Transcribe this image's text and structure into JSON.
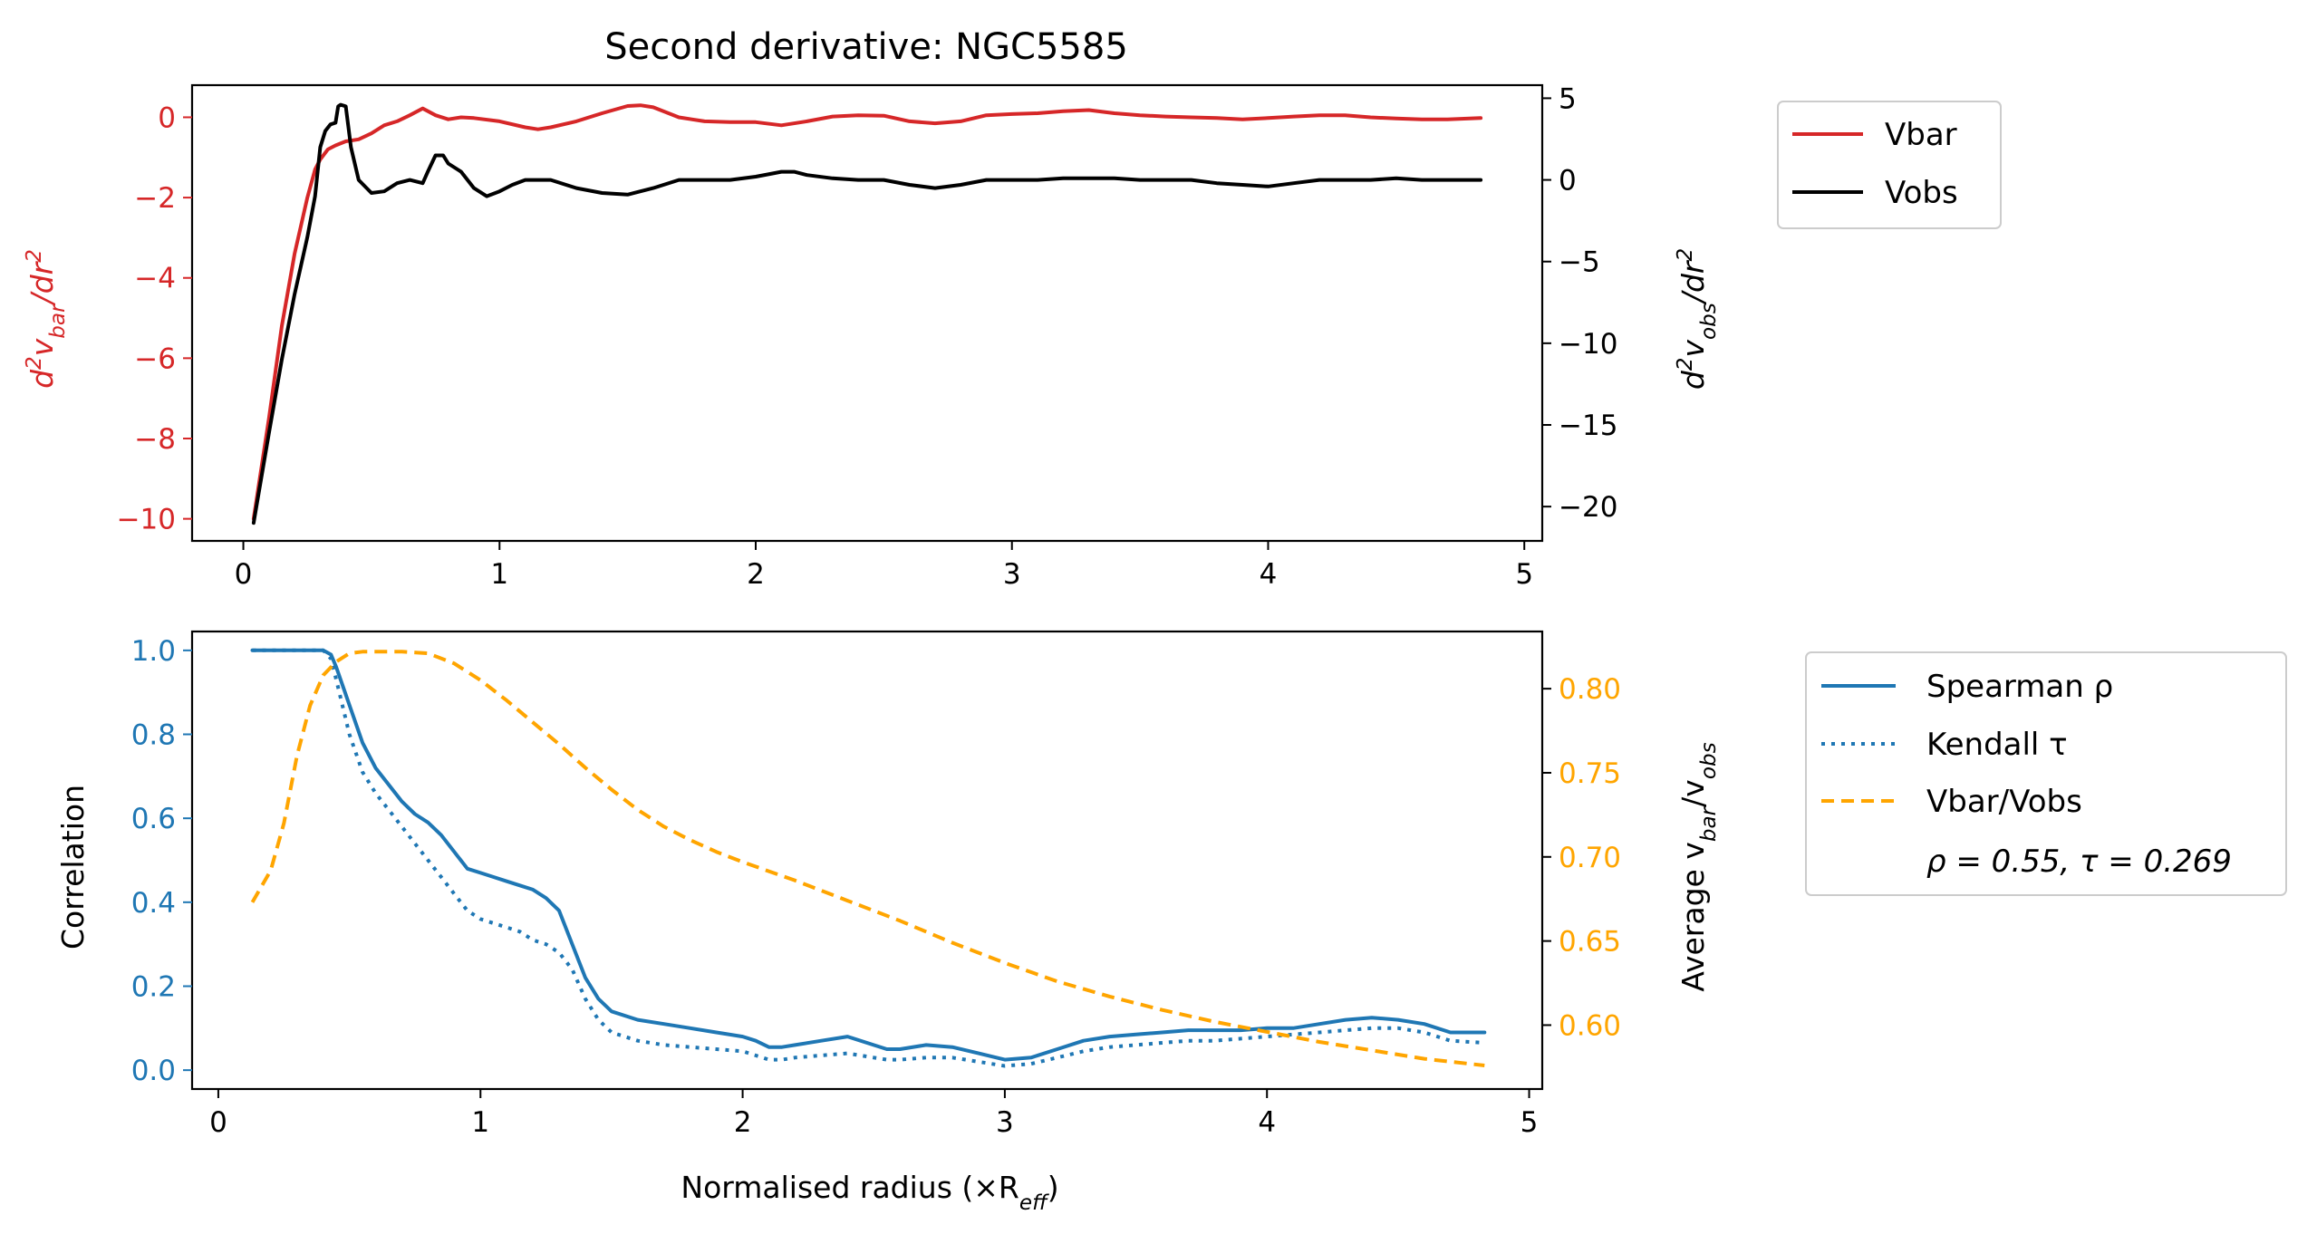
{
  "chart_data": [
    {
      "type": "line",
      "title": "Second derivative: NGC5585",
      "xlim": [
        -0.2,
        5.07
      ],
      "xticks": [
        0,
        1,
        2,
        3,
        4,
        5
      ],
      "ylabel_left_html": "d<tspan baseline-shift=\"super\" font-size=\"70%\">2</tspan>v<tspan baseline-shift=\"sub\" font-size=\"70%\">bar</tspan>/dr<tspan baseline-shift=\"super\" font-size=\"70%\">2</tspan>",
      "ylabel_right_html": "d<tspan baseline-shift=\"super\" font-size=\"70%\">2</tspan>v<tspan baseline-shift=\"sub\" font-size=\"70%\">obs</tspan>/dr<tspan baseline-shift=\"super\" font-size=\"70%\">2</tspan>",
      "ylim_left": [
        -10.55,
        0.8
      ],
      "yticks_left": [
        0,
        -2,
        -4,
        -6,
        -8,
        -10
      ],
      "ylim_right": [
        -22.1,
        5.8
      ],
      "yticks_right": [
        5,
        0,
        -5,
        -10,
        -15,
        -20
      ],
      "colors": {
        "left_axis": "#d62728",
        "right_axis": "#000000"
      },
      "legend": {
        "placement": "outside-right-top",
        "entries": [
          "Vbar",
          "Vobs"
        ]
      },
      "series": [
        {
          "name": "Vbar",
          "axis": "left",
          "color": "#d62728",
          "style": "solid",
          "x": [
            0.04,
            0.1,
            0.15,
            0.2,
            0.25,
            0.28,
            0.3,
            0.33,
            0.36,
            0.4,
            0.45,
            0.5,
            0.55,
            0.6,
            0.65,
            0.7,
            0.75,
            0.8,
            0.85,
            0.9,
            1.0,
            1.1,
            1.15,
            1.2,
            1.3,
            1.4,
            1.5,
            1.55,
            1.6,
            1.7,
            1.8,
            1.9,
            2.0,
            2.1,
            2.2,
            2.3,
            2.4,
            2.5,
            2.6,
            2.7,
            2.8,
            2.9,
            3.0,
            3.1,
            3.2,
            3.3,
            3.4,
            3.5,
            3.6,
            3.7,
            3.8,
            3.9,
            4.0,
            4.1,
            4.2,
            4.3,
            4.4,
            4.5,
            4.6,
            4.7,
            4.83
          ],
          "y": [
            -10.0,
            -7.5,
            -5.2,
            -3.4,
            -2.0,
            -1.3,
            -1.05,
            -0.8,
            -0.7,
            -0.6,
            -0.55,
            -0.4,
            -0.2,
            -0.1,
            0.05,
            0.22,
            0.05,
            -0.05,
            0.0,
            -0.02,
            -0.1,
            -0.25,
            -0.3,
            -0.25,
            -0.1,
            0.1,
            0.28,
            0.3,
            0.25,
            0.0,
            -0.1,
            -0.12,
            -0.12,
            -0.2,
            -0.1,
            0.02,
            0.05,
            0.04,
            -0.1,
            -0.15,
            -0.1,
            0.05,
            0.08,
            0.1,
            0.15,
            0.18,
            0.1,
            0.05,
            0.02,
            0.0,
            -0.02,
            -0.05,
            -0.02,
            0.02,
            0.05,
            0.05,
            0.0,
            -0.03,
            -0.05,
            -0.05,
            -0.02
          ]
        },
        {
          "name": "Vobs",
          "axis": "right",
          "color": "#000000",
          "style": "solid",
          "x": [
            0.04,
            0.1,
            0.15,
            0.2,
            0.25,
            0.28,
            0.3,
            0.32,
            0.34,
            0.36,
            0.37,
            0.38,
            0.4,
            0.42,
            0.45,
            0.5,
            0.55,
            0.6,
            0.65,
            0.7,
            0.72,
            0.75,
            0.78,
            0.8,
            0.85,
            0.9,
            0.95,
            1.0,
            1.05,
            1.1,
            1.2,
            1.3,
            1.4,
            1.5,
            1.6,
            1.7,
            1.8,
            1.9,
            2.0,
            2.1,
            2.15,
            2.2,
            2.3,
            2.4,
            2.5,
            2.6,
            2.7,
            2.8,
            2.9,
            3.0,
            3.1,
            3.2,
            3.3,
            3.4,
            3.5,
            3.6,
            3.7,
            3.8,
            3.9,
            4.0,
            4.1,
            4.2,
            4.3,
            4.4,
            4.5,
            4.6,
            4.7,
            4.83
          ],
          "y": [
            -21.0,
            -15.5,
            -11.0,
            -7.0,
            -3.5,
            -1.0,
            2.0,
            3.0,
            3.4,
            3.5,
            4.5,
            4.6,
            4.5,
            2.0,
            0.0,
            -0.8,
            -0.7,
            -0.2,
            0.0,
            -0.2,
            0.5,
            1.5,
            1.5,
            1.0,
            0.5,
            -0.5,
            -1.0,
            -0.7,
            -0.3,
            0.0,
            0.0,
            -0.5,
            -0.8,
            -0.9,
            -0.5,
            0.0,
            0.0,
            0.0,
            0.2,
            0.5,
            0.5,
            0.3,
            0.1,
            0.0,
            0.0,
            -0.3,
            -0.5,
            -0.3,
            0.0,
            0.0,
            0.0,
            0.1,
            0.1,
            0.1,
            0.0,
            0.0,
            0.0,
            -0.2,
            -0.3,
            -0.4,
            -0.2,
            0.0,
            0.0,
            0.0,
            0.1,
            0.0,
            0.0,
            0.0
          ]
        }
      ]
    },
    {
      "type": "line",
      "title": "",
      "xlabel_html": "Normalised radius (×R<tspan baseline-shift=\"sub\" font-size=\"70%\" font-style=\"italic\">eff</tspan>)",
      "xlim": [
        -0.1,
        5.05
      ],
      "xticks": [
        0,
        1,
        2,
        3,
        4,
        5
      ],
      "ylabel_left": "Correlation",
      "ylabel_right_html": "Average v<tspan baseline-shift=\"sub\" font-size=\"70%\" font-style=\"italic\">bar</tspan>/v<tspan baseline-shift=\"sub\" font-size=\"70%\" font-style=\"italic\">obs</tspan>",
      "ylim_left": [
        -0.045,
        1.045
      ],
      "yticks_left": [
        "1.0",
        "0.8",
        "0.6",
        "0.4",
        "0.2",
        "0.0"
      ],
      "ylim_right": [
        0.562,
        0.834
      ],
      "yticks_right": [
        "0.80",
        "0.75",
        "0.70",
        "0.65",
        "0.60"
      ],
      "colors": {
        "left_axis": "#1f77b4",
        "right_axis": "#ffa500"
      },
      "legend": {
        "placement": "outside-right-top",
        "entries": [
          "Spearman ρ",
          "Kendall τ",
          "Vbar/Vobs"
        ],
        "annotation": "ρ = 0.55, τ = 0.269"
      },
      "series": [
        {
          "name": "Spearman ρ",
          "axis": "left",
          "color": "#1f77b4",
          "style": "solid",
          "x": [
            0.13,
            0.2,
            0.3,
            0.4,
            0.43,
            0.45,
            0.5,
            0.55,
            0.6,
            0.65,
            0.7,
            0.75,
            0.8,
            0.85,
            0.9,
            0.95,
            1.0,
            1.05,
            1.1,
            1.15,
            1.2,
            1.25,
            1.3,
            1.35,
            1.4,
            1.45,
            1.5,
            1.6,
            1.7,
            1.8,
            1.9,
            2.0,
            2.05,
            2.1,
            2.15,
            2.2,
            2.3,
            2.4,
            2.5,
            2.55,
            2.6,
            2.7,
            2.8,
            2.9,
            3.0,
            3.1,
            3.2,
            3.3,
            3.4,
            3.5,
            3.6,
            3.7,
            3.8,
            3.9,
            4.0,
            4.1,
            4.2,
            4.3,
            4.4,
            4.5,
            4.6,
            4.7,
            4.83
          ],
          "y": [
            1.0,
            1.0,
            1.0,
            1.0,
            0.99,
            0.96,
            0.87,
            0.78,
            0.72,
            0.68,
            0.64,
            0.61,
            0.59,
            0.56,
            0.52,
            0.48,
            0.47,
            0.46,
            0.45,
            0.44,
            0.43,
            0.41,
            0.38,
            0.3,
            0.22,
            0.17,
            0.14,
            0.12,
            0.11,
            0.1,
            0.09,
            0.08,
            0.07,
            0.055,
            0.055,
            0.06,
            0.07,
            0.08,
            0.06,
            0.05,
            0.05,
            0.06,
            0.055,
            0.04,
            0.025,
            0.03,
            0.05,
            0.07,
            0.08,
            0.085,
            0.09,
            0.095,
            0.095,
            0.095,
            0.1,
            0.1,
            0.11,
            0.12,
            0.125,
            0.12,
            0.11,
            0.09,
            0.09
          ]
        },
        {
          "name": "Kendall τ",
          "axis": "left",
          "color": "#1f77b4",
          "style": "dotted",
          "x": [
            0.13,
            0.2,
            0.3,
            0.4,
            0.43,
            0.45,
            0.5,
            0.55,
            0.6,
            0.65,
            0.7,
            0.75,
            0.8,
            0.85,
            0.9,
            0.95,
            1.0,
            1.05,
            1.1,
            1.15,
            1.2,
            1.25,
            1.3,
            1.35,
            1.4,
            1.45,
            1.5,
            1.6,
            1.7,
            1.8,
            1.9,
            2.0,
            2.05,
            2.1,
            2.15,
            2.2,
            2.3,
            2.4,
            2.5,
            2.55,
            2.6,
            2.7,
            2.8,
            2.9,
            3.0,
            3.1,
            3.2,
            3.3,
            3.4,
            3.5,
            3.6,
            3.7,
            3.8,
            3.9,
            4.0,
            4.1,
            4.2,
            4.3,
            4.4,
            4.5,
            4.6,
            4.7,
            4.83
          ],
          "y": [
            1.0,
            1.0,
            1.0,
            1.0,
            0.98,
            0.93,
            0.8,
            0.71,
            0.66,
            0.62,
            0.58,
            0.54,
            0.5,
            0.46,
            0.42,
            0.38,
            0.36,
            0.35,
            0.34,
            0.33,
            0.31,
            0.3,
            0.28,
            0.24,
            0.17,
            0.12,
            0.09,
            0.07,
            0.06,
            0.055,
            0.05,
            0.045,
            0.035,
            0.025,
            0.025,
            0.03,
            0.035,
            0.04,
            0.03,
            0.025,
            0.025,
            0.03,
            0.03,
            0.02,
            0.01,
            0.015,
            0.03,
            0.045,
            0.055,
            0.06,
            0.065,
            0.07,
            0.07,
            0.075,
            0.08,
            0.085,
            0.09,
            0.095,
            0.1,
            0.1,
            0.09,
            0.07,
            0.065
          ]
        },
        {
          "name": "Vbar/Vobs",
          "axis": "right",
          "color": "#ffa500",
          "style": "dashed",
          "x": [
            0.13,
            0.2,
            0.25,
            0.3,
            0.35,
            0.4,
            0.45,
            0.5,
            0.55,
            0.6,
            0.7,
            0.8,
            0.9,
            1.0,
            1.1,
            1.2,
            1.3,
            1.4,
            1.5,
            1.6,
            1.7,
            1.8,
            1.9,
            2.0,
            2.2,
            2.4,
            2.6,
            2.8,
            3.0,
            3.2,
            3.4,
            3.6,
            3.8,
            4.0,
            4.2,
            4.4,
            4.6,
            4.83
          ],
          "y": [
            0.673,
            0.692,
            0.72,
            0.76,
            0.79,
            0.808,
            0.816,
            0.821,
            0.822,
            0.822,
            0.822,
            0.821,
            0.815,
            0.805,
            0.793,
            0.78,
            0.767,
            0.753,
            0.74,
            0.728,
            0.718,
            0.71,
            0.703,
            0.697,
            0.686,
            0.674,
            0.662,
            0.649,
            0.637,
            0.626,
            0.617,
            0.609,
            0.602,
            0.596,
            0.59,
            0.585,
            0.58,
            0.576
          ]
        }
      ]
    }
  ]
}
